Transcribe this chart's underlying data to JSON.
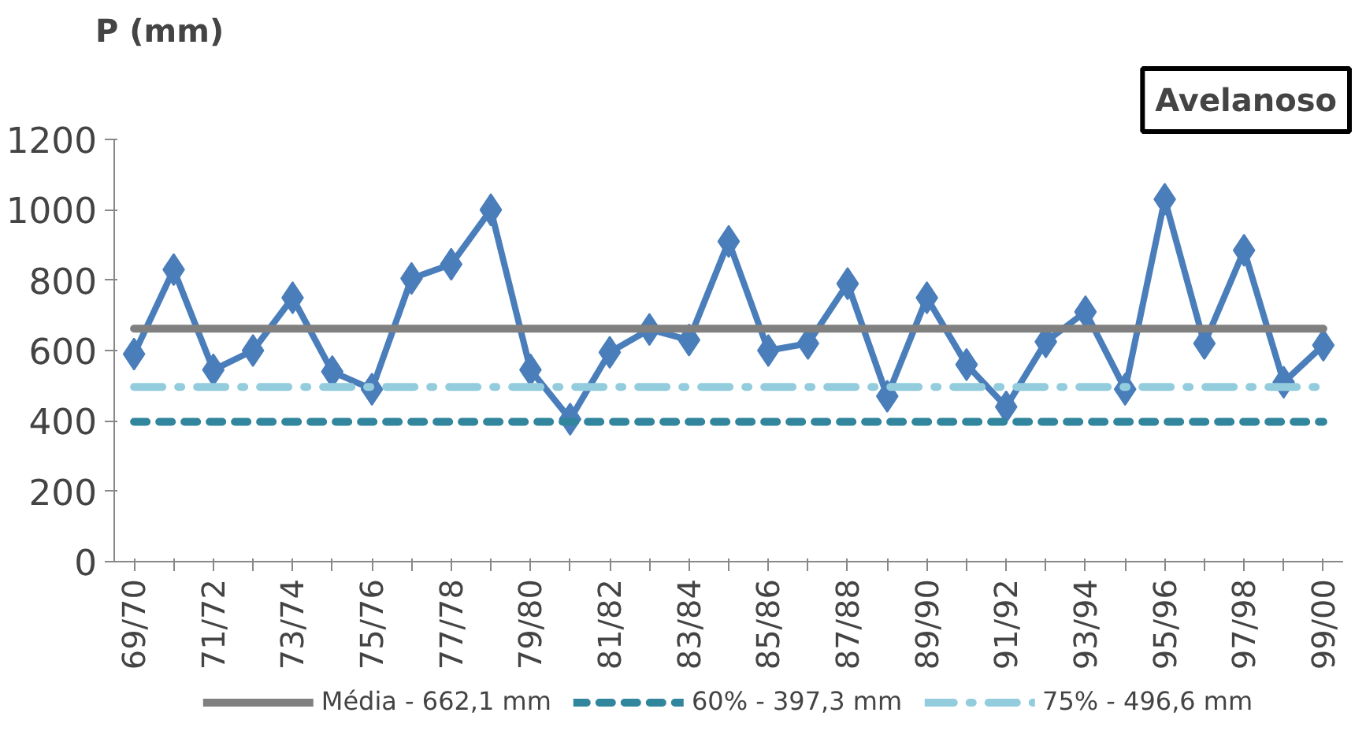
{
  "chart_data": {
    "type": "line",
    "title": "Avelanoso",
    "ylabel": "P (mm)",
    "categories": [
      "69/70",
      null,
      "71/72",
      null,
      "73/74",
      null,
      "75/76",
      null,
      "77/78",
      null,
      "79/80",
      null,
      "81/82",
      null,
      "83/84",
      null,
      "85/86",
      null,
      "87/88",
      null,
      "89/90",
      null,
      "91/92",
      null,
      "93/94",
      null,
      "95/96",
      null,
      "97/98",
      null,
      "99/00"
    ],
    "series": [
      {
        "color": "#4a7ebb",
        "values": [
          590,
          830,
          545,
          600,
          750,
          540,
          490,
          805,
          845,
          1000,
          545,
          405,
          595,
          660,
          630,
          910,
          600,
          620,
          790,
          470,
          750,
          560,
          440,
          625,
          710,
          490,
          1030,
          620,
          885,
          510,
          615
        ]
      }
    ],
    "ref_lines": [
      {
        "axis": "y",
        "value": 662.1,
        "label": "Média - 662,1 mm",
        "color": "#808080",
        "line_style": "solid"
      },
      {
        "axis": "y",
        "value": 397.3,
        "label": "60% - 397,3 mm",
        "color": "#31859c",
        "line_style": "dashed"
      },
      {
        "axis": "y",
        "value": 496.6,
        "label": "75% - 496,6 mm",
        "color": "#93cddd",
        "line_style": "dashdot"
      }
    ],
    "ylim": [
      0,
      1200
    ],
    "yticks": [
      0,
      200,
      400,
      600,
      800,
      1000,
      1200
    ],
    "grid": false,
    "legend": "bottom",
    "marker": "diamond",
    "line_style": "solid"
  }
}
